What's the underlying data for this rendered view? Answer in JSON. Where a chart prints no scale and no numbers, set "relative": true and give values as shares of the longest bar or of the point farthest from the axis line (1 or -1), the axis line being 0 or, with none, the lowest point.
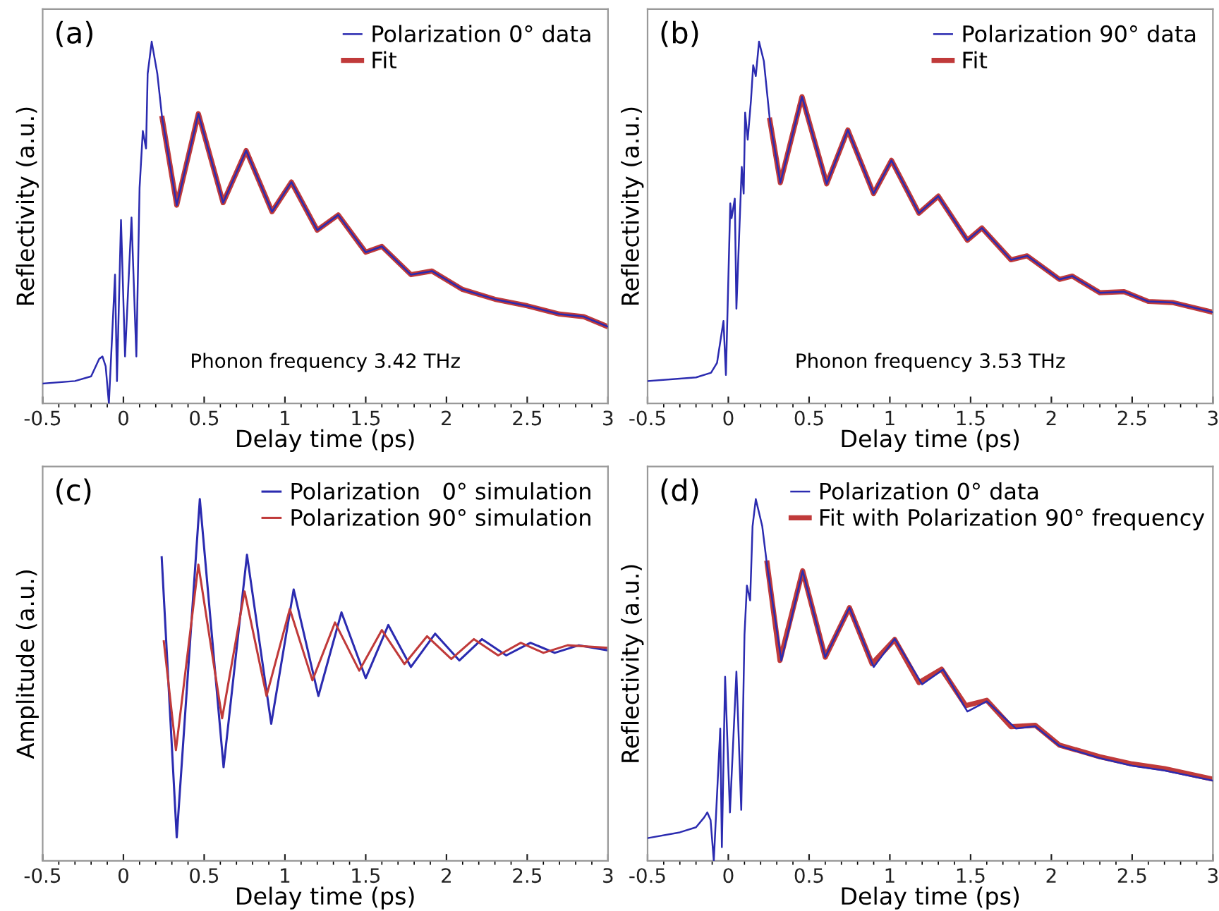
{
  "chart_data": [
    {
      "type": "line",
      "title": "(a)",
      "xlabel": "Delay time (ps)",
      "ylabel": "Reflectivity (a.u.)",
      "relative": true,
      "xlim": [
        -0.5,
        3
      ],
      "xticks": [
        -0.5,
        0,
        0.5,
        1,
        1.5,
        2,
        2.5,
        3
      ],
      "legend": "top right",
      "grid": false,
      "annotations": [
        "Phonon frequency 3.42 THz"
      ],
      "series": [
        {
          "name": "Polarization 0° data",
          "color": "#2b2bb0",
          "x": [
            -0.5,
            -0.3,
            -0.2,
            -0.15,
            -0.13,
            -0.11,
            -0.09,
            -0.052,
            -0.04,
            -0.015,
            0.01,
            0.05,
            0.08,
            0.1,
            0.12,
            0.14,
            0.15,
            0.175,
            0.21,
            0.24,
            0.33,
            0.464,
            0.617,
            0.76,
            0.92,
            1.04,
            1.2,
            1.33,
            1.5,
            1.6,
            1.78,
            1.91,
            2.1,
            2.3,
            2.5,
            2.7,
            2.85,
            3.0
          ],
          "values": [
            0.055,
            0.062,
            0.075,
            0.123,
            0.13,
            0.103,
            0,
            0.356,
            0.062,
            0.507,
            0.13,
            0.514,
            0.13,
            0.596,
            0.753,
            0.705,
            0.911,
            1.0,
            0.911,
            0.788,
            0.548,
            0.801,
            0.555,
            0.699,
            0.53,
            0.612,
            0.479,
            0.521,
            0.418,
            0.434,
            0.356,
            0.366,
            0.315,
            0.288,
            0.27,
            0.247,
            0.24,
            0.212
          ]
        },
        {
          "name": "Fit",
          "color": "#c03a3a",
          "x": [
            0.24,
            0.33,
            0.464,
            0.617,
            0.76,
            0.92,
            1.04,
            1.2,
            1.33,
            1.5,
            1.6,
            1.78,
            1.91,
            2.1,
            2.3,
            2.5,
            2.7,
            2.85,
            3.0
          ],
          "values": [
            0.788,
            0.548,
            0.801,
            0.555,
            0.699,
            0.53,
            0.612,
            0.479,
            0.521,
            0.418,
            0.434,
            0.356,
            0.366,
            0.315,
            0.288,
            0.27,
            0.247,
            0.24,
            0.212
          ]
        }
      ]
    },
    {
      "type": "line",
      "title": "(b)",
      "xlabel": "Delay time (ps)",
      "ylabel": "Reflectivity (a.u.)",
      "relative": true,
      "xlim": [
        -0.5,
        3
      ],
      "xticks": [
        -0.5,
        0,
        0.5,
        1,
        1.5,
        2,
        2.5,
        3
      ],
      "legend": "top right",
      "grid": false,
      "annotations": [
        "Phonon frequency 3.53 THz"
      ],
      "series": [
        {
          "name": "Polarization 90° data",
          "color": "#2b2bb0",
          "x": [
            -0.5,
            -0.2,
            -0.107,
            -0.07,
            -0.03,
            -0.015,
            0.012,
            0.02,
            0.04,
            0.05,
            0.083,
            0.095,
            0.104,
            0.12,
            0.14,
            0.154,
            0.17,
            0.19,
            0.22,
            0.257,
            0.322,
            0.456,
            0.609,
            0.74,
            0.899,
            1.01,
            1.18,
            1.3,
            1.48,
            1.57,
            1.75,
            1.85,
            2.05,
            2.13,
            2.3,
            2.45,
            2.6,
            2.75,
            3.0
          ],
          "values": [
            0.062,
            0.072,
            0.085,
            0.112,
            0.228,
            0.079,
            0.553,
            0.512,
            0.566,
            0.262,
            0.654,
            0.58,
            0.804,
            0.729,
            0.837,
            0.935,
            0.905,
            1.0,
            0.946,
            0.783,
            0.61,
            0.848,
            0.607,
            0.756,
            0.58,
            0.672,
            0.526,
            0.573,
            0.451,
            0.485,
            0.397,
            0.408,
            0.343,
            0.352,
            0.306,
            0.309,
            0.282,
            0.279,
            0.252
          ]
        },
        {
          "name": "Fit",
          "color": "#c03a3a",
          "x": [
            0.257,
            0.322,
            0.456,
            0.609,
            0.74,
            0.899,
            1.01,
            1.18,
            1.3,
            1.48,
            1.57,
            1.75,
            1.85,
            2.05,
            2.13,
            2.3,
            2.45,
            2.6,
            2.75,
            3.0
          ],
          "values": [
            0.783,
            0.61,
            0.848,
            0.607,
            0.756,
            0.58,
            0.672,
            0.526,
            0.573,
            0.451,
            0.485,
            0.397,
            0.408,
            0.343,
            0.352,
            0.306,
            0.309,
            0.282,
            0.279,
            0.252
          ]
        }
      ]
    },
    {
      "type": "line",
      "title": "(c)",
      "xlabel": "Delay time (ps)",
      "ylabel": "Amplitude (a.u.)",
      "relative": true,
      "xlim": [
        -0.5,
        3
      ],
      "xticks": [
        -0.5,
        0,
        0.5,
        1,
        1.5,
        2,
        2.5,
        3
      ],
      "legend": "top right",
      "grid": false,
      "series": [
        {
          "name": "Polarization   0° simulation",
          "color": "#2b2bb0",
          "x": [
            0.237,
            0.33,
            0.473,
            0.62,
            0.765,
            0.915,
            1.054,
            1.207,
            1.35,
            1.5,
            1.64,
            1.78,
            1.93,
            2.08,
            2.22,
            2.37,
            2.52,
            2.67,
            2.82,
            3.0
          ],
          "values": [
            0.839,
            0.065,
            1.0,
            0.259,
            0.846,
            0.379,
            0.75,
            0.456,
            0.687,
            0.505,
            0.652,
            0.536,
            0.628,
            0.554,
            0.613,
            0.568,
            0.603,
            0.575,
            0.596,
            0.582
          ]
        },
        {
          "name": "Polarization 90° simulation",
          "color": "#c03a3a",
          "x": [
            0.25,
            0.325,
            0.464,
            0.611,
            0.75,
            0.886,
            1.03,
            1.17,
            1.31,
            1.46,
            1.6,
            1.74,
            1.88,
            2.03,
            2.17,
            2.32,
            2.46,
            2.6,
            2.75,
            3.0
          ],
          "values": [
            0.607,
            0.306,
            0.819,
            0.394,
            0.745,
            0.456,
            0.696,
            0.499,
            0.659,
            0.526,
            0.638,
            0.544,
            0.621,
            0.558,
            0.613,
            0.568,
            0.603,
            0.575,
            0.596,
            0.589
          ]
        }
      ]
    },
    {
      "type": "line",
      "title": "(d)",
      "xlabel": "Delay time (ps)",
      "ylabel": "Reflectivity (a.u.)",
      "relative": true,
      "xlim": [
        -0.5,
        3
      ],
      "xticks": [
        -0.5,
        0,
        0.5,
        1,
        1.5,
        2,
        2.5,
        3
      ],
      "legend": "top",
      "grid": false,
      "series": [
        {
          "name": "Polarization 0° data",
          "color": "#2b2bb0",
          "x": [
            -0.5,
            -0.3,
            -0.2,
            -0.15,
            -0.13,
            -0.11,
            -0.09,
            -0.05,
            -0.04,
            -0.02,
            0.01,
            0.05,
            0.08,
            0.1,
            0.115,
            0.135,
            0.15,
            0.17,
            0.21,
            0.24,
            0.328,
            0.46,
            0.6,
            0.75,
            0.9,
            1.03,
            1.2,
            1.33,
            1.48,
            1.6,
            1.78,
            1.9,
            2.05,
            2.3,
            2.5,
            2.7,
            3.0
          ],
          "values": [
            0.063,
            0.079,
            0.093,
            0.12,
            0.134,
            0.113,
            0,
            0.366,
            0.038,
            0.509,
            0.134,
            0.523,
            0.141,
            0.625,
            0.761,
            0.72,
            0.925,
            1.0,
            0.925,
            0.816,
            0.554,
            0.802,
            0.563,
            0.7,
            0.536,
            0.614,
            0.488,
            0.529,
            0.413,
            0.441,
            0.366,
            0.372,
            0.318,
            0.284,
            0.263,
            0.25,
            0.222
          ]
        },
        {
          "name": "Fit with Polarization 90° frequency",
          "color": "#c03a3a",
          "x": [
            0.24,
            0.32,
            0.46,
            0.6,
            0.75,
            0.89,
            1.03,
            1.18,
            1.32,
            1.47,
            1.6,
            1.75,
            1.9,
            2.05,
            2.3,
            2.5,
            2.7,
            3.0
          ],
          "values": [
            0.823,
            0.554,
            0.802,
            0.563,
            0.7,
            0.545,
            0.612,
            0.493,
            0.53,
            0.429,
            0.444,
            0.371,
            0.375,
            0.32,
            0.288,
            0.268,
            0.255,
            0.226
          ]
        }
      ]
    }
  ]
}
